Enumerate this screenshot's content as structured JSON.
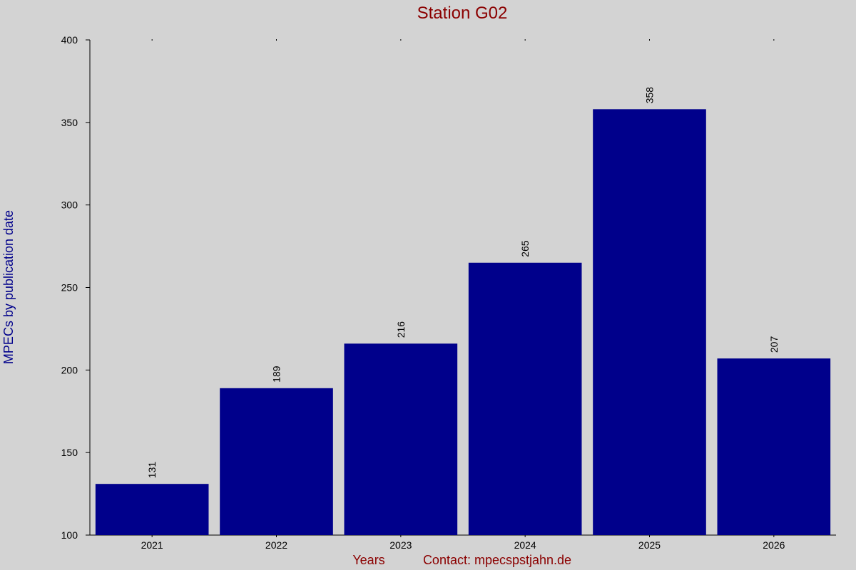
{
  "chart_data": {
    "type": "bar",
    "title": "Station G02",
    "xlabel": "Years",
    "ylabel": "MPECs by publication date",
    "footer_text": "Contact: mpecspstjahn.de",
    "categories": [
      "2021",
      "2022",
      "2023",
      "2024",
      "2025",
      "2026"
    ],
    "values": [
      131,
      189,
      216,
      265,
      358,
      207
    ],
    "data_labels": [
      "131",
      "189",
      "216",
      "265",
      "358",
      "207"
    ],
    "ylim": [
      100,
      400
    ],
    "y_ticks": [
      "100",
      "150",
      "200",
      "250",
      "300",
      "350",
      "400"
    ],
    "grid": false,
    "colors": {
      "background": "#d3d3d3",
      "bar": "#00008b",
      "title": "#8b0000",
      "ylabel": "#00008b",
      "xlabel": "#8b0000",
      "axis": "#000000"
    }
  }
}
